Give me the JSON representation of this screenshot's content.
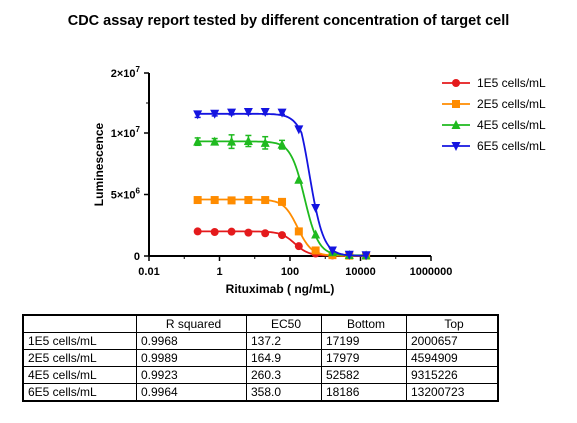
{
  "chart_data": {
    "type": "line",
    "title": "CDC assay report tested by different concentration of target cell",
    "xlabel": "Rituximab ( ng/mL)",
    "ylabel": "Luminescence",
    "x_scale": "log",
    "x_ticks": [
      "0.01",
      "1",
      "100",
      "10000",
      "1000000"
    ],
    "x_tick_values": [
      0.01,
      1,
      100,
      10000,
      1000000
    ],
    "y_ticks": [
      {
        "value": 0,
        "mantissa": "0",
        "exp": ""
      },
      {
        "value": 5000000,
        "mantissa": "5×10",
        "exp": "6"
      },
      {
        "value": 10000000,
        "mantissa": "1×10",
        "exp": "7"
      },
      {
        "value": 20000000,
        "mantissa": "2×10",
        "exp": "7"
      }
    ],
    "y_breaks": [
      0,
      5000000,
      10000000,
      20000000
    ],
    "legend_position": "right",
    "x": [
      0.24,
      0.73,
      2.2,
      6.6,
      19.8,
      59.4,
      178,
      533,
      1600,
      4800,
      14400
    ],
    "series": [
      {
        "name": "1E5 cells/mL",
        "color": "#e41a1c",
        "marker": "circle",
        "y": [
          2000000,
          1950000,
          1980000,
          1900000,
          1850000,
          1700000,
          800000,
          200000,
          50000,
          30000,
          30000
        ],
        "err": [
          0,
          0,
          0,
          0,
          0,
          0,
          0,
          0,
          0,
          0,
          0
        ],
        "fit": {
          "bottom": 17199,
          "top": 2000657,
          "ec50": 137.2,
          "hill": 2.2
        }
      },
      {
        "name": "2E5 cells/mL",
        "color": "#ff8c00",
        "marker": "square",
        "y": [
          4550000,
          4550000,
          4520000,
          4550000,
          4550000,
          4400000,
          2000000,
          450000,
          70000,
          30000,
          30000
        ],
        "err": [
          0,
          0,
          0,
          0,
          0,
          0,
          0,
          0,
          0,
          0,
          0
        ],
        "fit": {
          "bottom": 17979,
          "top": 4594909,
          "ec50": 164.9,
          "hill": 2.2
        }
      },
      {
        "name": "4E5 cells/mL",
        "color": "#1fba1f",
        "marker": "triangle-up",
        "y": [
          9300000,
          9300000,
          9300000,
          9350000,
          9200000,
          9050000,
          6200000,
          1750000,
          300000,
          80000,
          50000
        ],
        "err": [
          300000,
          250000,
          550000,
          450000,
          500000,
          350000,
          0,
          0,
          0,
          0,
          0
        ],
        "fit": {
          "bottom": 52582,
          "top": 9315226,
          "ec50": 260.3,
          "hill": 2.2
        }
      },
      {
        "name": "6E5 cells/mL",
        "color": "#1414e0",
        "marker": "triangle-down",
        "y": [
          13100000,
          13200000,
          13400000,
          13500000,
          13500000,
          13400000,
          10600000,
          3900000,
          450000,
          100000,
          60000
        ],
        "err": [
          500000,
          350000,
          350000,
          350000,
          400000,
          300000,
          0,
          0,
          0,
          0,
          0
        ],
        "fit": {
          "bottom": 18186,
          "top": 13200723,
          "ec50": 358.0,
          "hill": 2.2
        }
      }
    ]
  },
  "table": {
    "headers": [
      "",
      "R squared",
      "EC50",
      "Bottom",
      "Top"
    ],
    "rows": [
      [
        "1E5 cells/mL",
        "0.9968",
        "137.2",
        "17199",
        "2000657"
      ],
      [
        "2E5 cells/mL",
        "0.9989",
        "164.9",
        "17979",
        "4594909"
      ],
      [
        "4E5 cells/mL",
        "0.9923",
        "260.3",
        "52582",
        "9315226"
      ],
      [
        "6E5 cells/mL",
        "0.9964",
        "358.0",
        "18186",
        "13200723"
      ]
    ]
  }
}
